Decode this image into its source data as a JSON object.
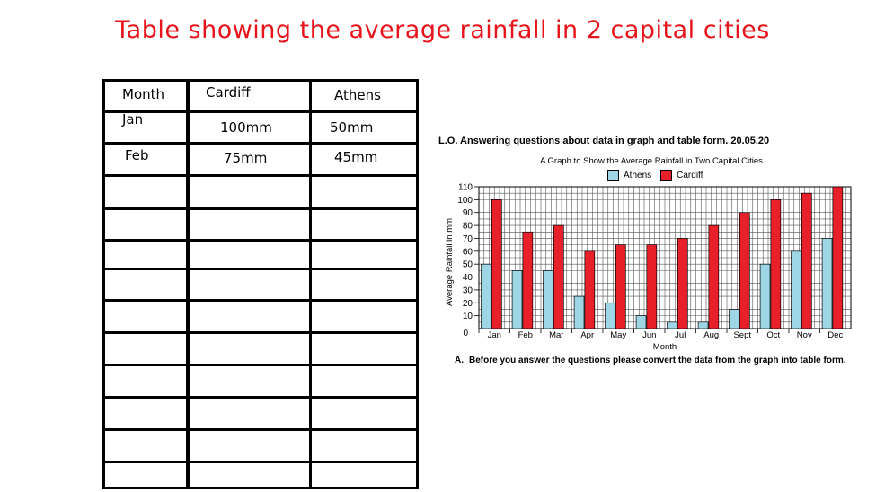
{
  "title": "Table showing the average rainfall in 2 capital cities",
  "table": {
    "headers": [
      "Month",
      "Cardiff",
      "Athens"
    ],
    "rows": [
      [
        "Jan",
        "100mm",
        "50mm"
      ],
      [
        "Feb",
        "75mm",
        "45mm"
      ]
    ],
    "empty_rows": 10
  },
  "lo_line": "L.O. Answering questions about data in graph and table form.  20.05.20",
  "note": {
    "letter": "A.",
    "text": "Before you answer the questions please convert the data from the graph into table form."
  },
  "chart_data": {
    "type": "bar",
    "title": "A Graph to Show the Average Rainfall in Two Capital Cities",
    "xlabel": "Month",
    "ylabel": "Average Rainfall in mm",
    "categories": [
      "Jan",
      "Feb",
      "Mar",
      "Apr",
      "May",
      "Jun",
      "Jul",
      "Aug",
      "Sept",
      "Oct",
      "Nov",
      "Dec"
    ],
    "series": [
      {
        "name": "Athens",
        "color": "#9fd6e6",
        "values": [
          50,
          45,
          45,
          25,
          20,
          10,
          5,
          5,
          15,
          50,
          60,
          70
        ]
      },
      {
        "name": "Cardiff",
        "color": "#e8202a",
        "values": [
          100,
          75,
          80,
          60,
          65,
          65,
          70,
          80,
          90,
          100,
          105,
          110
        ]
      }
    ],
    "ylim": [
      0,
      110
    ],
    "yticks": [
      0,
      10,
      20,
      30,
      40,
      50,
      60,
      70,
      80,
      90,
      100,
      110
    ],
    "grid": true,
    "legend": "top"
  }
}
